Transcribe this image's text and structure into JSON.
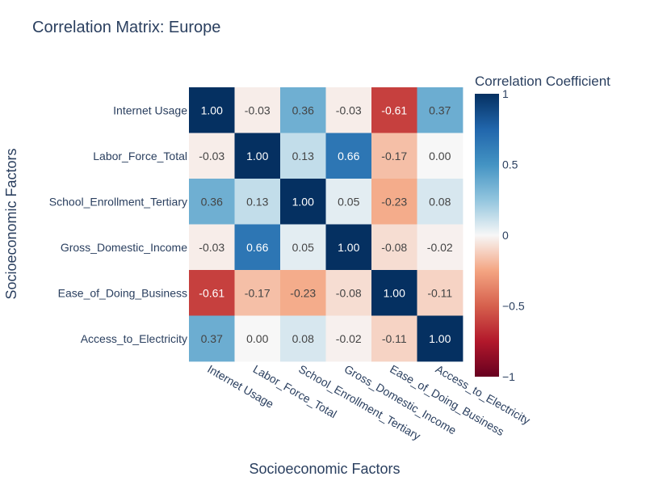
{
  "chart_data": {
    "type": "heatmap",
    "title": "Correlation Matrix: Europe",
    "xlabel": "Socioeconomic Factors",
    "ylabel": "Socioeconomic Factors",
    "x_categories": [
      "Internet Usage",
      "Labor_Force_Total",
      "School_Enrollment_Tertiary",
      "Gross_Domestic_Income",
      "Ease_of_Doing_Business",
      "Access_to_Electricity"
    ],
    "y_categories": [
      "Internet Usage",
      "Labor_Force_Total",
      "School_Enrollment_Tertiary",
      "Gross_Domestic_Income",
      "Ease_of_Doing_Business",
      "Access_to_Electricity"
    ],
    "values": [
      [
        1.0,
        -0.03,
        0.36,
        -0.03,
        -0.61,
        0.37
      ],
      [
        -0.03,
        1.0,
        0.13,
        0.66,
        -0.17,
        0.0
      ],
      [
        0.36,
        0.13,
        1.0,
        0.05,
        -0.23,
        0.08
      ],
      [
        -0.03,
        0.66,
        0.05,
        1.0,
        -0.08,
        -0.02
      ],
      [
        -0.61,
        -0.17,
        -0.23,
        -0.08,
        1.0,
        -0.11
      ],
      [
        0.37,
        0.0,
        0.08,
        -0.02,
        -0.11,
        1.0
      ]
    ],
    "value_labels": [
      [
        "1.00",
        "-0.03",
        "0.36",
        "-0.03",
        "-0.61",
        "0.37"
      ],
      [
        "-0.03",
        "1.00",
        "0.13",
        "0.66",
        "-0.17",
        "0.00"
      ],
      [
        "0.36",
        "0.13",
        "1.00",
        "0.05",
        "-0.23",
        "0.08"
      ],
      [
        "-0.03",
        "0.66",
        "0.05",
        "1.00",
        "-0.08",
        "-0.02"
      ],
      [
        "-0.61",
        "-0.17",
        "-0.23",
        "-0.08",
        "1.00",
        "-0.11"
      ],
      [
        "0.37",
        "0.00",
        "0.08",
        "-0.02",
        "-0.11",
        "1.00"
      ]
    ],
    "colorscale": "RdBu",
    "zmin": -1,
    "zmax": 1,
    "colorbar": {
      "title": "Correlation Coefficient",
      "ticks": [
        1,
        0.5,
        0,
        -0.5,
        -1
      ],
      "tick_labels": [
        "1",
        "0.5",
        "0",
        "−0.5",
        "−1"
      ]
    },
    "grid": false,
    "x_tick_angle_deg": 30
  },
  "colors": {
    "title": "#2a3f5f",
    "axis_text": "#2a3f5f",
    "cell_text_dark": "#444444",
    "cell_text_light": "#ffffff"
  }
}
